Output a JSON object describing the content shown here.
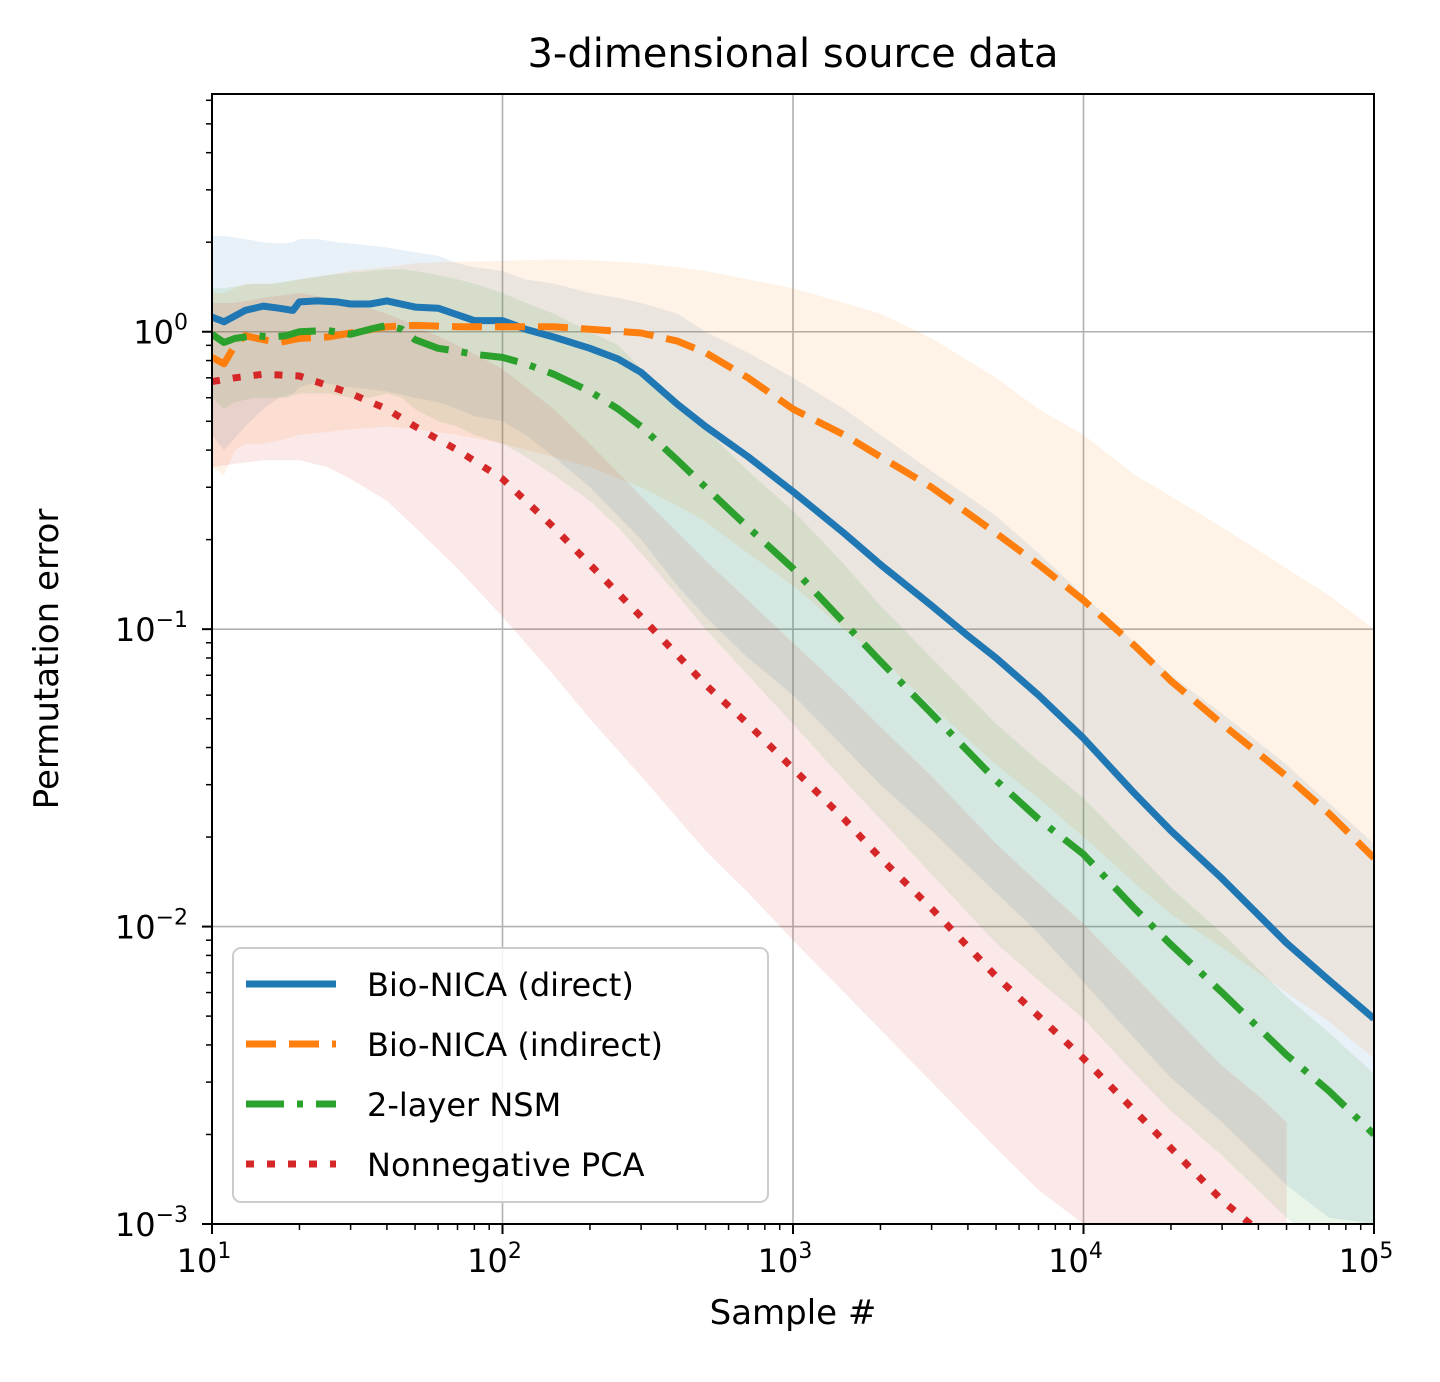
{
  "chart_data": {
    "type": "line",
    "title": "3-dimensional source data",
    "xlabel": "Sample #",
    "ylabel": "Permutation error",
    "xscale": "log",
    "yscale": "log",
    "xlim": [
      10,
      100000
    ],
    "ylim": [
      0.001,
      6.3
    ],
    "grid": true,
    "legend_position": "lower-left",
    "x_ticks": [
      {
        "value": 10,
        "base": "10",
        "exp": "1"
      },
      {
        "value": 100,
        "base": "10",
        "exp": "2"
      },
      {
        "value": 1000,
        "base": "10",
        "exp": "3"
      },
      {
        "value": 10000,
        "base": "10",
        "exp": "4"
      },
      {
        "value": 100000,
        "base": "10",
        "exp": "5"
      }
    ],
    "y_ticks": [
      {
        "value": 1,
        "base": "10",
        "exp": "0"
      },
      {
        "value": 0.1,
        "base": "10",
        "exp": "−1"
      },
      {
        "value": 0.01,
        "base": "10",
        "exp": "−2"
      },
      {
        "value": 0.001,
        "base": "10",
        "exp": "−3"
      }
    ],
    "series": [
      {
        "name": "Bio-NICA (direct)",
        "color": "#1f77b4",
        "dash": "solid",
        "x": [
          10,
          11,
          13,
          15,
          17,
          19,
          20,
          23,
          27,
          30,
          35,
          40,
          50,
          60,
          70,
          80,
          100,
          120,
          150,
          200,
          250,
          300,
          400,
          500,
          700,
          1000,
          1500,
          2000,
          3000,
          4000,
          5000,
          7000,
          10000,
          15000,
          20000,
          30000,
          50000,
          70000,
          100000
        ],
        "y": [
          1.12,
          1.08,
          1.18,
          1.22,
          1.2,
          1.18,
          1.26,
          1.27,
          1.26,
          1.24,
          1.24,
          1.27,
          1.21,
          1.2,
          1.14,
          1.09,
          1.09,
          1.02,
          0.96,
          0.88,
          0.81,
          0.73,
          0.57,
          0.48,
          0.38,
          0.29,
          0.21,
          0.165,
          0.12,
          0.095,
          0.08,
          0.06,
          0.043,
          0.028,
          0.021,
          0.0145,
          0.0088,
          0.0066,
          0.0049
        ],
        "band_upper": [
          2.1,
          2.1,
          2.05,
          2.0,
          1.98,
          2.0,
          2.05,
          2.05,
          2.0,
          1.98,
          1.95,
          1.92,
          1.85,
          1.8,
          1.7,
          1.65,
          1.6,
          1.5,
          1.45,
          1.35,
          1.3,
          1.25,
          1.15,
          1.0,
          0.85,
          0.7,
          0.55,
          0.45,
          0.34,
          0.28,
          0.24,
          0.18,
          0.13,
          0.09,
          0.07,
          0.052,
          0.035,
          0.026,
          0.019
        ],
        "band_lower": [
          0.45,
          0.4,
          0.48,
          0.55,
          0.6,
          0.62,
          0.65,
          0.68,
          0.66,
          0.65,
          0.64,
          0.63,
          0.6,
          0.58,
          0.55,
          0.52,
          0.5,
          0.45,
          0.38,
          0.3,
          0.24,
          0.2,
          0.14,
          0.11,
          0.08,
          0.06,
          0.04,
          0.03,
          0.021,
          0.016,
          0.013,
          0.0095,
          0.0065,
          0.0042,
          0.0031,
          0.0022,
          0.00135,
          0.00105,
          0.001
        ]
      },
      {
        "name": "Bio-NICA (indirect)",
        "color": "#ff7f0e",
        "dash": "dashed",
        "x": [
          10,
          11,
          12,
          13,
          15,
          17,
          20,
          25,
          30,
          40,
          50,
          70,
          100,
          150,
          200,
          300,
          400,
          500,
          700,
          1000,
          1500,
          2000,
          3000,
          5000,
          7000,
          10000,
          15000,
          20000,
          30000,
          50000,
          70000,
          100000
        ],
        "y": [
          0.82,
          0.78,
          0.9,
          0.97,
          0.94,
          0.92,
          0.95,
          0.96,
          0.99,
          1.04,
          1.05,
          1.04,
          1.04,
          1.04,
          1.02,
          0.99,
          0.93,
          0.85,
          0.7,
          0.55,
          0.45,
          0.38,
          0.3,
          0.21,
          0.165,
          0.125,
          0.088,
          0.067,
          0.048,
          0.032,
          0.024,
          0.017
        ],
        "band_upper": [
          1.35,
          1.35,
          1.4,
          1.45,
          1.45,
          1.45,
          1.5,
          1.55,
          1.6,
          1.65,
          1.7,
          1.72,
          1.73,
          1.75,
          1.74,
          1.7,
          1.65,
          1.6,
          1.5,
          1.4,
          1.25,
          1.15,
          0.95,
          0.7,
          0.55,
          0.45,
          0.33,
          0.28,
          0.22,
          0.16,
          0.13,
          0.1
        ],
        "band_lower": [
          0.35,
          0.33,
          0.4,
          0.42,
          0.42,
          0.43,
          0.45,
          0.46,
          0.47,
          0.48,
          0.47,
          0.45,
          0.42,
          0.38,
          0.35,
          0.3,
          0.26,
          0.23,
          0.18,
          0.14,
          0.1,
          0.08,
          0.055,
          0.035,
          0.027,
          0.02,
          0.014,
          0.011,
          0.0085,
          0.006,
          0.0048,
          0.0036
        ]
      },
      {
        "name": "2-layer NSM",
        "color": "#2ca02c",
        "dash": "dashdot",
        "x": [
          10,
          11,
          12,
          14,
          16,
          18,
          20,
          25,
          30,
          35,
          40,
          45,
          50,
          60,
          70,
          80,
          100,
          120,
          150,
          200,
          250,
          300,
          400,
          500,
          700,
          1000,
          1500,
          2000,
          3000,
          5000,
          7000,
          10000,
          15000,
          20000,
          30000,
          50000,
          70000,
          100000
        ],
        "y": [
          0.98,
          0.92,
          0.95,
          0.97,
          0.96,
          0.97,
          1.0,
          1.01,
          0.98,
          1.02,
          1.05,
          1.02,
          0.94,
          0.88,
          0.86,
          0.84,
          0.82,
          0.78,
          0.72,
          0.63,
          0.55,
          0.48,
          0.37,
          0.3,
          0.22,
          0.16,
          0.105,
          0.078,
          0.052,
          0.031,
          0.023,
          0.0175,
          0.0115,
          0.0087,
          0.006,
          0.0037,
          0.0028,
          0.002
        ],
        "band_upper": [
          1.4,
          1.4,
          1.42,
          1.45,
          1.45,
          1.48,
          1.5,
          1.55,
          1.58,
          1.6,
          1.62,
          1.62,
          1.6,
          1.55,
          1.5,
          1.45,
          1.35,
          1.25,
          1.15,
          1.0,
          0.9,
          0.75,
          0.58,
          0.47,
          0.34,
          0.25,
          0.165,
          0.12,
          0.08,
          0.048,
          0.036,
          0.027,
          0.018,
          0.0135,
          0.0095,
          0.0058,
          0.0044,
          0.0032
        ],
        "band_lower": [
          0.6,
          0.55,
          0.58,
          0.6,
          0.6,
          0.6,
          0.62,
          0.62,
          0.6,
          0.6,
          0.62,
          0.6,
          0.55,
          0.5,
          0.48,
          0.45,
          0.42,
          0.38,
          0.33,
          0.27,
          0.22,
          0.18,
          0.13,
          0.1,
          0.07,
          0.048,
          0.031,
          0.023,
          0.015,
          0.0088,
          0.0066,
          0.0049,
          0.0032,
          0.0024,
          0.0017,
          0.00105,
          0.00078,
          0.00056
        ]
      },
      {
        "name": "Nonnegative PCA",
        "color": "#d62728",
        "dash": "dotted",
        "x": [
          10,
          12,
          15,
          20,
          25,
          30,
          40,
          50,
          70,
          100,
          150,
          200,
          300,
          500,
          700,
          1000,
          1500,
          2000,
          3000,
          5000,
          7000,
          10000,
          15000,
          20000,
          30000,
          40000,
          50000
        ],
        "y": [
          0.68,
          0.7,
          0.72,
          0.71,
          0.66,
          0.62,
          0.55,
          0.48,
          0.4,
          0.32,
          0.22,
          0.165,
          0.11,
          0.065,
          0.048,
          0.034,
          0.023,
          0.017,
          0.0115,
          0.0068,
          0.005,
          0.0036,
          0.0024,
          0.0018,
          0.0012,
          0.00095,
          0.00078
        ],
        "band_upper": [
          1.25,
          1.25,
          1.3,
          1.35,
          1.3,
          1.25,
          1.15,
          1.05,
          0.9,
          0.75,
          0.55,
          0.42,
          0.28,
          0.17,
          0.125,
          0.09,
          0.062,
          0.047,
          0.032,
          0.019,
          0.014,
          0.0102,
          0.0068,
          0.0051,
          0.0034,
          0.0027,
          0.0022
        ],
        "band_lower": [
          0.35,
          0.36,
          0.37,
          0.37,
          0.35,
          0.32,
          0.27,
          0.22,
          0.16,
          0.11,
          0.07,
          0.05,
          0.032,
          0.018,
          0.013,
          0.009,
          0.006,
          0.0045,
          0.003,
          0.0018,
          0.0013,
          0.001,
          0.0007,
          0.00055,
          0.00038,
          0.0003,
          0.00025
        ]
      }
    ]
  }
}
